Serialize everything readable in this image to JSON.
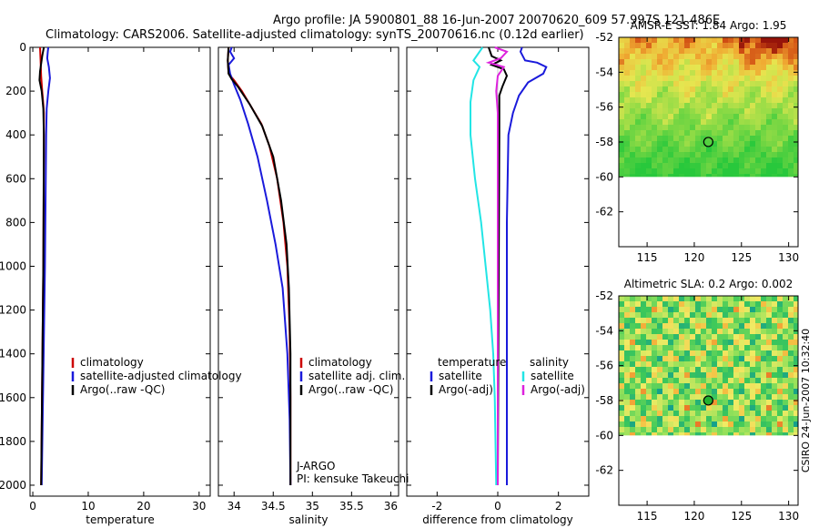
{
  "title_line1": "Argo profile: JA 5900801_88 16-Jun-2007 20070620_609 57.997S 121.486E",
  "title_line2": "Climatology: CARS2006. Satellite-adjusted climatology: synTS_20070616.nc (0.12d earlier)",
  "side_stamp": "CSIRO 24-Jun-2007 10:32:40",
  "colors": {
    "climatology": "#cc0000",
    "satellite": "#1a1adb",
    "argo": "#000000",
    "cyan": "#22e5e5",
    "magenta": "#dd22dd"
  },
  "chart_data": [
    {
      "type": "line",
      "xlabel": "temperature",
      "xlim": [
        -0.5,
        32
      ],
      "ylim": [
        2050,
        0
      ],
      "yticks": [
        "0",
        "200",
        "400",
        "600",
        "800",
        "1000",
        "1200",
        "1400",
        "1600",
        "1800",
        "2000"
      ],
      "xticks": [
        "0",
        "10",
        "20",
        "30"
      ],
      "legend": [
        "climatology",
        "satellite-adjusted climatology",
        "Argo(..raw -QC)"
      ],
      "series": [
        {
          "name": "climatology",
          "points": [
            [
              1.3,
              0
            ],
            [
              1.4,
              60
            ],
            [
              1.5,
              130
            ],
            [
              1.7,
              200
            ],
            [
              1.9,
              260
            ],
            [
              2.0,
              300
            ],
            [
              2.0,
              500
            ],
            [
              1.9,
              1000
            ],
            [
              1.7,
              1500
            ],
            [
              1.5,
              2000
            ]
          ]
        },
        {
          "name": "satellite-adjusted climatology",
          "points": [
            [
              2.8,
              0
            ],
            [
              2.7,
              20
            ],
            [
              2.6,
              50
            ],
            [
              2.9,
              90
            ],
            [
              3.1,
              140
            ],
            [
              2.8,
              200
            ],
            [
              2.5,
              280
            ],
            [
              2.4,
              400
            ],
            [
              2.2,
              1000
            ],
            [
              1.9,
              1500
            ],
            [
              1.6,
              2000
            ]
          ]
        },
        {
          "name": "Argo(..raw -QC)",
          "points": [
            [
              2.0,
              0
            ],
            [
              1.7,
              40
            ],
            [
              1.3,
              110
            ],
            [
              1.2,
              150
            ],
            [
              1.6,
              200
            ],
            [
              1.9,
              280
            ],
            [
              2.0,
              400
            ],
            [
              1.9,
              1000
            ],
            [
              1.7,
              1500
            ],
            [
              1.5,
              2000
            ]
          ]
        }
      ]
    },
    {
      "type": "line",
      "xlabel": "salinity",
      "xlim": [
        33.8,
        36.1
      ],
      "ylim": [
        2050,
        0
      ],
      "xticks": [
        "34",
        "34.5",
        "35",
        "35.5",
        "36"
      ],
      "legend": [
        "climatology",
        "satellite adj. clim.",
        "Argo(..raw -QC)"
      ],
      "annotation": [
        "J-ARGO",
        "PI: kensuke Takeuchi"
      ],
      "series": [
        {
          "name": "climatology",
          "points": [
            [
              33.93,
              0
            ],
            [
              33.92,
              60
            ],
            [
              33.93,
              120
            ],
            [
              34.0,
              150
            ],
            [
              34.1,
              200
            ],
            [
              34.2,
              260
            ],
            [
              34.35,
              350
            ],
            [
              34.45,
              450
            ],
            [
              34.55,
              600
            ],
            [
              34.63,
              800
            ],
            [
              34.68,
              1000
            ],
            [
              34.71,
              1300
            ],
            [
              34.72,
              1600
            ],
            [
              34.72,
              2000
            ]
          ]
        },
        {
          "name": "satellite adj. clim.",
          "points": [
            [
              33.97,
              0
            ],
            [
              33.95,
              20
            ],
            [
              34.0,
              50
            ],
            [
              33.93,
              80
            ],
            [
              33.95,
              120
            ],
            [
              34.0,
              170
            ],
            [
              34.08,
              240
            ],
            [
              34.18,
              350
            ],
            [
              34.3,
              500
            ],
            [
              34.42,
              700
            ],
            [
              34.53,
              900
            ],
            [
              34.62,
              1100
            ],
            [
              34.68,
              1400
            ],
            [
              34.71,
              1700
            ],
            [
              34.72,
              2000
            ]
          ]
        },
        {
          "name": "Argo(..raw -QC)",
          "points": [
            [
              33.93,
              0
            ],
            [
              33.92,
              60
            ],
            [
              33.93,
              120
            ],
            [
              33.97,
              145
            ],
            [
              34.05,
              180
            ],
            [
              34.2,
              260
            ],
            [
              34.36,
              360
            ],
            [
              34.5,
              500
            ],
            [
              34.6,
              700
            ],
            [
              34.67,
              900
            ],
            [
              34.7,
              1100
            ],
            [
              34.72,
              1400
            ],
            [
              34.72,
              2000
            ]
          ]
        }
      ]
    },
    {
      "type": "line",
      "xlabel": "difference from climatology",
      "xlim": [
        -3.0,
        3.0
      ],
      "ylim": [
        2050,
        0
      ],
      "xticks": [
        "-2",
        "0",
        "2"
      ],
      "legend_left": [
        "temperature",
        "satellite",
        "Argo(-adj)"
      ],
      "legend_right": [
        "salinity",
        "satellite",
        "Argo(-adj)"
      ],
      "series": [
        {
          "name": "temperature satellite",
          "points": [
            [
              0.8,
              0
            ],
            [
              0.75,
              20
            ],
            [
              0.9,
              60
            ],
            [
              1.3,
              70
            ],
            [
              1.6,
              90
            ],
            [
              1.5,
              120
            ],
            [
              1.0,
              160
            ],
            [
              0.7,
              220
            ],
            [
              0.5,
              300
            ],
            [
              0.35,
              400
            ],
            [
              0.3,
              800
            ],
            [
              0.3,
              1200
            ],
            [
              0.3,
              2000
            ]
          ]
        },
        {
          "name": "temperature Argo(-adj)",
          "points": [
            [
              -0.3,
              0
            ],
            [
              -0.2,
              40
            ],
            [
              0.1,
              60
            ],
            [
              -0.2,
              80
            ],
            [
              0.2,
              100
            ],
            [
              0.3,
              130
            ],
            [
              0.15,
              180
            ],
            [
              0.05,
              220
            ],
            [
              0.05,
              400
            ],
            [
              0.0,
              2000
            ]
          ]
        },
        {
          "name": "salinity satellite",
          "points": [
            [
              -0.5,
              0
            ],
            [
              -0.8,
              60
            ],
            [
              -0.6,
              90
            ],
            [
              -0.8,
              150
            ],
            [
              -0.9,
              250
            ],
            [
              -0.9,
              400
            ],
            [
              -0.75,
              600
            ],
            [
              -0.55,
              800
            ],
            [
              -0.4,
              1000
            ],
            [
              -0.25,
              1200
            ],
            [
              -0.15,
              1400
            ],
            [
              -0.1,
              1600
            ],
            [
              -0.05,
              2000
            ]
          ]
        },
        {
          "name": "salinity Argo(-adj)",
          "points": [
            [
              -0.1,
              0
            ],
            [
              0.3,
              20
            ],
            [
              0.1,
              50
            ],
            [
              -0.3,
              70
            ],
            [
              0.2,
              90
            ],
            [
              0.0,
              130
            ],
            [
              -0.05,
              200
            ],
            [
              0.0,
              300
            ],
            [
              0.0,
              2000
            ]
          ]
        }
      ]
    },
    {
      "type": "heatmap",
      "title": "AMSR-E SST: 1.84 Argo: 1.95",
      "xlim": [
        112,
        131
      ],
      "ylim": [
        -64,
        -52
      ],
      "xticks": [
        "115",
        "120",
        "125",
        "130"
      ],
      "yticks": [
        "-52",
        "-54",
        "-56",
        "-58",
        "-60",
        "-62"
      ],
      "marker": [
        121.486,
        -57.997
      ]
    },
    {
      "type": "heatmap",
      "title": "Altimetric SLA: 0.2 Argo: 0.002",
      "xlim": [
        112,
        131
      ],
      "ylim": [
        -64,
        -52
      ],
      "xticks": [
        "115",
        "120",
        "125",
        "130"
      ],
      "yticks": [
        "-52",
        "-54",
        "-56",
        "-58",
        "-60",
        "-62"
      ],
      "marker": [
        121.486,
        -57.997
      ]
    }
  ]
}
